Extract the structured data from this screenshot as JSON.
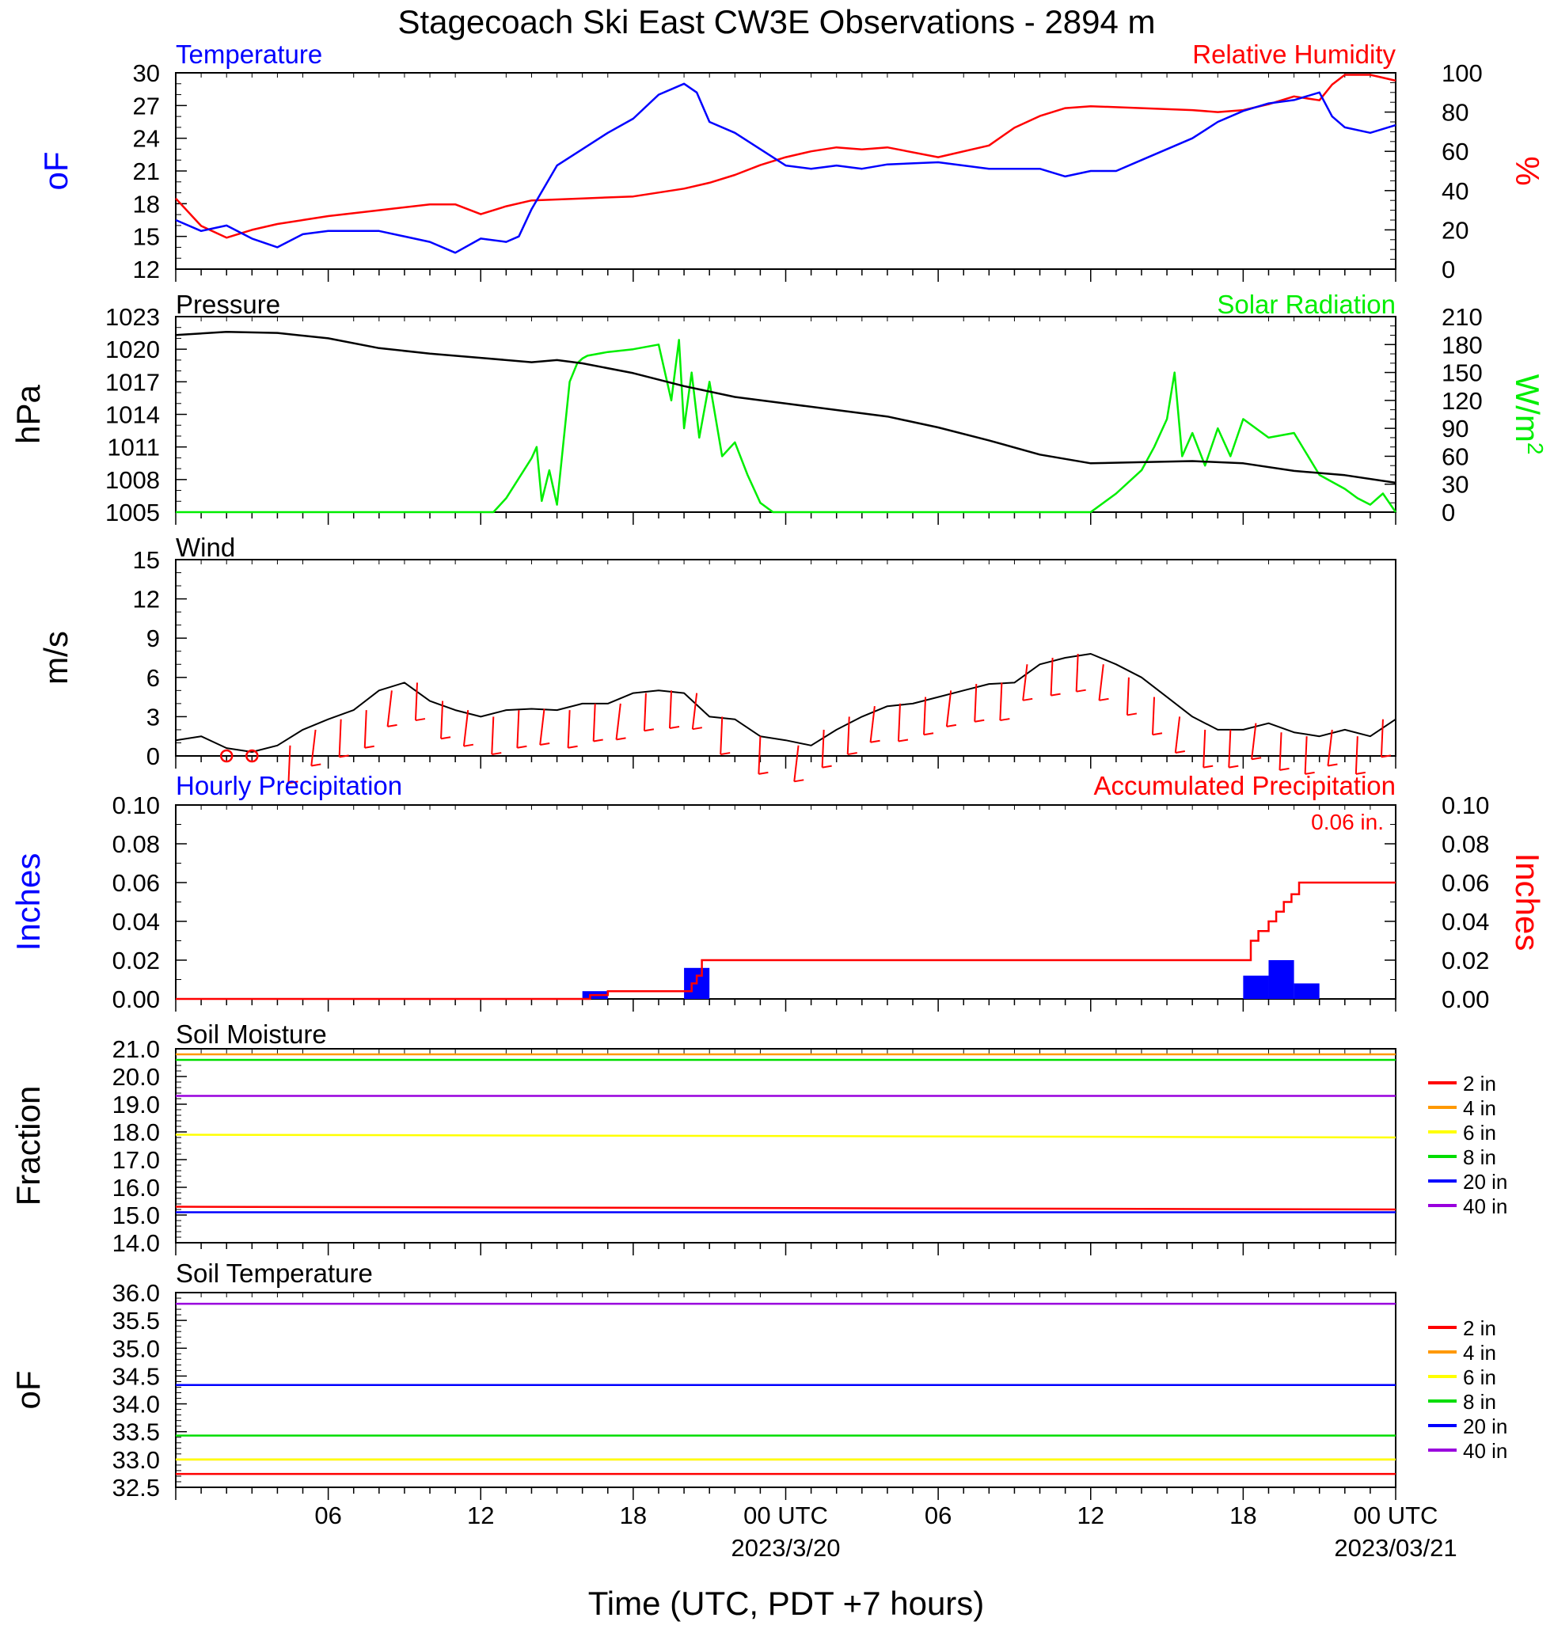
{
  "title": "Stagecoach Ski East CW3E Observations - 2894 m",
  "x_axis": {
    "label": "Time (UTC, PDT +7 hours)",
    "hours_total": 48,
    "ticks": [
      {
        "hour": 6,
        "label": "06",
        "sublabel": ""
      },
      {
        "hour": 12,
        "label": "12",
        "sublabel": ""
      },
      {
        "hour": 18,
        "label": "18",
        "sublabel": ""
      },
      {
        "hour": 24,
        "label": "00 UTC",
        "sublabel": "2023/3/20"
      },
      {
        "hour": 30,
        "label": "06",
        "sublabel": ""
      },
      {
        "hour": 36,
        "label": "12",
        "sublabel": ""
      },
      {
        "hour": 42,
        "label": "18",
        "sublabel": ""
      },
      {
        "hour": 48,
        "label": "00 UTC",
        "sublabel": "2023/03/21"
      }
    ]
  },
  "colors": {
    "temperature": "#0000ff",
    "humidity": "#ff0000",
    "pressure": "#000000",
    "solar": "#00ee00",
    "wind": "#000000",
    "barb": "#ff0000",
    "hourly_precip": "#0000ff",
    "accum_precip": "#ff0000",
    "depth_2in": "#ff0000",
    "depth_4in": "#ff9900",
    "depth_6in": "#ffff00",
    "depth_8in": "#00dd00",
    "depth_20in": "#0000ff",
    "depth_40in": "#9900dd"
  },
  "panels": {
    "temp_rh": {
      "left_title": "Temperature",
      "right_title": "Relative Humidity",
      "left_ylabel": "oF",
      "right_ylabel": "%",
      "left_ticks": [
        "12",
        "15",
        "18",
        "21",
        "24",
        "27",
        "30"
      ],
      "right_ticks": [
        "0",
        "20",
        "40",
        "60",
        "80",
        "100"
      ]
    },
    "pressure_solar": {
      "left_title": "Pressure",
      "right_title": "Solar Radiation",
      "left_ylabel": "hPa",
      "right_ylabel": "W/m",
      "right_ylabel_sup": "2",
      "left_ticks": [
        "1005",
        "1008",
        "1011",
        "1014",
        "1017",
        "1020",
        "1023"
      ],
      "right_ticks": [
        "0",
        "30",
        "60",
        "90",
        "120",
        "150",
        "180",
        "210"
      ]
    },
    "wind": {
      "left_title": "Wind",
      "left_ylabel": "m/s",
      "left_ticks": [
        "0",
        "3",
        "6",
        "9",
        "12",
        "15"
      ]
    },
    "precip": {
      "left_title": "Hourly Precipitation",
      "right_title": "Accumulated Precipitation",
      "annotation": "0.06 in.",
      "left_ylabel": "Inches",
      "right_ylabel": "Inches",
      "left_ticks": [
        "0.00",
        "0.02",
        "0.04",
        "0.06",
        "0.08",
        "0.10"
      ],
      "right_ticks": [
        "0.00",
        "0.02",
        "0.04",
        "0.06",
        "0.08",
        "0.10"
      ]
    },
    "soil_moisture": {
      "left_title": "Soil Moisture",
      "left_ylabel": "Fraction",
      "left_ticks": [
        "14.0",
        "15.0",
        "16.0",
        "17.0",
        "18.0",
        "19.0",
        "20.0",
        "21.0"
      ],
      "legend": [
        "2 in",
        "4 in",
        "6 in",
        "8 in",
        "20 in",
        "40 in"
      ]
    },
    "soil_temp": {
      "left_title": "Soil Temperature",
      "left_ylabel": "oF",
      "left_ticks": [
        "32.5",
        "33.0",
        "33.5",
        "34.0",
        "34.5",
        "35.0",
        "35.5",
        "36.0"
      ],
      "legend": [
        "2 in",
        "4 in",
        "6 in",
        "8 in",
        "20 in",
        "40 in"
      ]
    }
  },
  "chart_data": [
    {
      "type": "line",
      "title": "Temperature / Relative Humidity",
      "x_unit": "hours since 2023-03-19 00 UTC",
      "ylim_left": [
        12,
        30
      ],
      "ylim_right": [
        0,
        100
      ],
      "series": [
        {
          "name": "Temperature",
          "axis": "left",
          "x": [
            0,
            1,
            2,
            3,
            4,
            5,
            6,
            8,
            10,
            11,
            12,
            13,
            13.5,
            14,
            15,
            16,
            17,
            18,
            19,
            20,
            20.5,
            21,
            22,
            23,
            24,
            25,
            26,
            27,
            28,
            30,
            32,
            34,
            35,
            36,
            37,
            38,
            40,
            41,
            42,
            43,
            44,
            45,
            45.5,
            46,
            47,
            48
          ],
          "y": [
            16.5,
            15.5,
            16,
            14.8,
            14,
            15.2,
            15.5,
            15.5,
            14.5,
            13.5,
            14.8,
            14.5,
            15,
            17.5,
            21.5,
            23,
            24.5,
            25.8,
            28,
            29,
            28.2,
            25.5,
            24.5,
            23,
            21.5,
            21.2,
            21.5,
            21.2,
            21.6,
            21.8,
            21.2,
            21.2,
            20.5,
            21,
            21,
            22,
            24,
            25.5,
            26.5,
            27.2,
            27.5,
            28.2,
            26,
            25,
            24.5,
            25.2
          ]
        },
        {
          "name": "Relative Humidity",
          "axis": "right",
          "x": [
            0,
            1,
            2,
            3,
            4,
            5,
            6,
            8,
            10,
            11,
            12,
            13,
            14,
            16,
            18,
            20,
            21,
            22,
            23,
            24,
            25,
            26,
            27,
            28,
            30,
            32,
            33,
            34,
            35,
            36,
            38,
            40,
            41,
            42,
            43,
            44,
            45,
            45.5,
            46,
            47,
            48
          ],
          "y": [
            36,
            22,
            16,
            20,
            23,
            25,
            27,
            30,
            33,
            33,
            28,
            32,
            35,
            36,
            37,
            41,
            44,
            48,
            53,
            57,
            60,
            62,
            61,
            62,
            57,
            63,
            72,
            78,
            82,
            83,
            82,
            81,
            80,
            81,
            84,
            88,
            86,
            94,
            99,
            99,
            96
          ]
        }
      ]
    },
    {
      "type": "line",
      "title": "Pressure / Solar Radiation",
      "x_unit": "hours since 2023-03-19 00 UTC",
      "ylim_left": [
        1005,
        1023
      ],
      "ylim_right": [
        0,
        210
      ],
      "series": [
        {
          "name": "Pressure",
          "axis": "left",
          "x": [
            0,
            2,
            4,
            6,
            8,
            10,
            12,
            14,
            15,
            16,
            18,
            20,
            22,
            24,
            26,
            28,
            30,
            32,
            34,
            36,
            38,
            40,
            42,
            44,
            46,
            48
          ],
          "y": [
            1021.3,
            1021.6,
            1021.5,
            1021,
            1020.1,
            1019.6,
            1019.2,
            1018.8,
            1019,
            1018.7,
            1017.8,
            1016.6,
            1015.6,
            1015,
            1014.4,
            1013.8,
            1012.8,
            1011.6,
            1010.3,
            1009.5,
            1009.6,
            1009.7,
            1009.5,
            1008.8,
            1008.4,
            1007.7
          ]
        },
        {
          "name": "Solar Radiation",
          "axis": "right",
          "x": [
            0,
            12.5,
            13,
            14,
            14.2,
            14.4,
            14.7,
            15,
            15.5,
            15.8,
            16,
            16.2,
            17,
            18,
            19,
            19.5,
            19.8,
            20,
            20.3,
            20.6,
            21,
            21.5,
            22,
            22.5,
            23,
            23.5,
            36,
            37,
            38,
            38.5,
            39,
            39.3,
            39.6,
            40,
            40.5,
            41,
            41.5,
            42,
            43,
            44,
            45,
            46,
            46.5,
            47,
            47.5,
            48
          ],
          "y": [
            0,
            0,
            15,
            58,
            70,
            12,
            45,
            8,
            140,
            160,
            165,
            168,
            172,
            175,
            180,
            120,
            185,
            90,
            150,
            80,
            140,
            60,
            75,
            40,
            10,
            0,
            0,
            20,
            45,
            70,
            100,
            150,
            60,
            85,
            50,
            90,
            60,
            100,
            80,
            85,
            40,
            25,
            15,
            8,
            20,
            0
          ]
        }
      ]
    },
    {
      "type": "line",
      "title": "Wind",
      "x_unit": "hours since 2023-03-19 00 UTC",
      "ylim": [
        0,
        15
      ],
      "series": [
        {
          "name": "Wind speed",
          "x": [
            0,
            1,
            2,
            3,
            4,
            5,
            6,
            7,
            8,
            9,
            10,
            11,
            12,
            13,
            14,
            15,
            16,
            17,
            18,
            19,
            20,
            21,
            22,
            23,
            24,
            25,
            26,
            27,
            28,
            29,
            30,
            31,
            32,
            33,
            34,
            35,
            36,
            37,
            38,
            39,
            40,
            41,
            42,
            43,
            44,
            45,
            46,
            47,
            48
          ],
          "y": [
            1.2,
            1.5,
            0.6,
            0.3,
            0.8,
            2,
            2.8,
            3.5,
            5,
            5.6,
            4.2,
            3.5,
            3,
            3.5,
            3.6,
            3.5,
            4,
            4,
            4.8,
            5,
            4.8,
            3,
            2.8,
            1.5,
            1.2,
            0.8,
            2,
            3,
            3.8,
            4,
            4.5,
            5,
            5.5,
            5.6,
            7,
            7.5,
            7.8,
            7,
            6,
            4.5,
            3,
            2,
            2,
            2.5,
            1.8,
            1.5,
            2,
            1.5,
            2.8
          ]
        },
        {
          "name": "Wind barbs",
          "x": [
            2,
            3,
            4.5,
            5.5,
            6.5,
            7.5,
            8.5,
            9.5,
            10.5,
            11.5,
            12.5,
            13.5,
            14.5,
            15.5,
            16.5,
            17.5,
            18.5,
            19.5,
            20.5,
            21.5,
            23,
            24.5,
            25.5,
            26.5,
            27.5,
            28.5,
            29.5,
            30.5,
            31.5,
            32.5,
            33.5,
            34.5,
            35.5,
            36.5,
            37.5,
            38.5,
            39.5,
            40.5,
            41.5,
            42.5,
            43.5,
            44.5,
            45.5,
            46.5,
            47.5
          ],
          "y": [
            0.3,
            0.3,
            0.8,
            2,
            2.8,
            3.5,
            5,
            5.6,
            4.2,
            3.5,
            3,
            3.5,
            3.6,
            3.5,
            4,
            4,
            4.8,
            5,
            4.8,
            3,
            1.5,
            0.8,
            2,
            3,
            3.8,
            4,
            4.5,
            5,
            5.5,
            5.6,
            7,
            7.5,
            7.8,
            7,
            6,
            4.5,
            3,
            2,
            2,
            2.5,
            1.8,
            1.5,
            2,
            1.5,
            2.8
          ]
        }
      ]
    },
    {
      "type": "bar",
      "title": "Hourly / Accumulated Precipitation",
      "x_unit": "hours since 2023-03-19 00 UTC",
      "ylim": [
        0,
        0.1
      ],
      "series": [
        {
          "name": "Hourly Precipitation",
          "x": [
            16,
            20,
            42,
            43,
            44
          ],
          "values": [
            0.004,
            0.016,
            0.012,
            0.02,
            0.008
          ]
        },
        {
          "name": "Accumulated Precipitation",
          "x": [
            0,
            16,
            16.3,
            17,
            20,
            20.3,
            20.5,
            20.7,
            42,
            42.3,
            42.6,
            43,
            43.3,
            43.6,
            43.9,
            44.2,
            44.6,
            48
          ],
          "values": [
            0,
            0,
            0.002,
            0.004,
            0.004,
            0.008,
            0.012,
            0.02,
            0.02,
            0.03,
            0.035,
            0.04,
            0.045,
            0.05,
            0.054,
            0.06,
            0.06,
            0.06
          ]
        }
      ]
    },
    {
      "type": "line",
      "title": "Soil Moisture",
      "x_unit": "hours since 2023-03-19 00 UTC",
      "ylim": [
        14,
        21
      ],
      "series": [
        {
          "name": "2 in",
          "x": [
            0,
            48
          ],
          "y": [
            15.3,
            15.2
          ]
        },
        {
          "name": "4 in",
          "x": [
            0,
            48
          ],
          "y": [
            20.8,
            20.8
          ]
        },
        {
          "name": "6 in",
          "x": [
            0,
            48
          ],
          "y": [
            17.9,
            17.8
          ]
        },
        {
          "name": "8 in",
          "x": [
            0,
            48
          ],
          "y": [
            20.6,
            20.6
          ]
        },
        {
          "name": "20 in",
          "x": [
            0,
            48
          ],
          "y": [
            15.1,
            15.1
          ]
        },
        {
          "name": "40 in",
          "x": [
            0,
            48
          ],
          "y": [
            19.3,
            19.3
          ]
        }
      ]
    },
    {
      "type": "line",
      "title": "Soil Temperature",
      "x_unit": "hours since 2023-03-19 00 UTC",
      "ylim": [
        32.5,
        36
      ],
      "series": [
        {
          "name": "2 in",
          "x": [
            0,
            48
          ],
          "y": [
            32.74,
            32.74
          ]
        },
        {
          "name": "4 in",
          "x": [
            0,
            48
          ],
          "y": [
            33.0,
            33.0
          ]
        },
        {
          "name": "6 in",
          "x": [
            0,
            48
          ],
          "y": [
            33.0,
            33.0
          ]
        },
        {
          "name": "8 in",
          "x": [
            0,
            48
          ],
          "y": [
            33.43,
            33.43
          ]
        },
        {
          "name": "20 in",
          "x": [
            0,
            48
          ],
          "y": [
            34.34,
            34.34
          ]
        },
        {
          "name": "40 in",
          "x": [
            0,
            48
          ],
          "y": [
            35.8,
            35.8
          ]
        }
      ]
    }
  ]
}
